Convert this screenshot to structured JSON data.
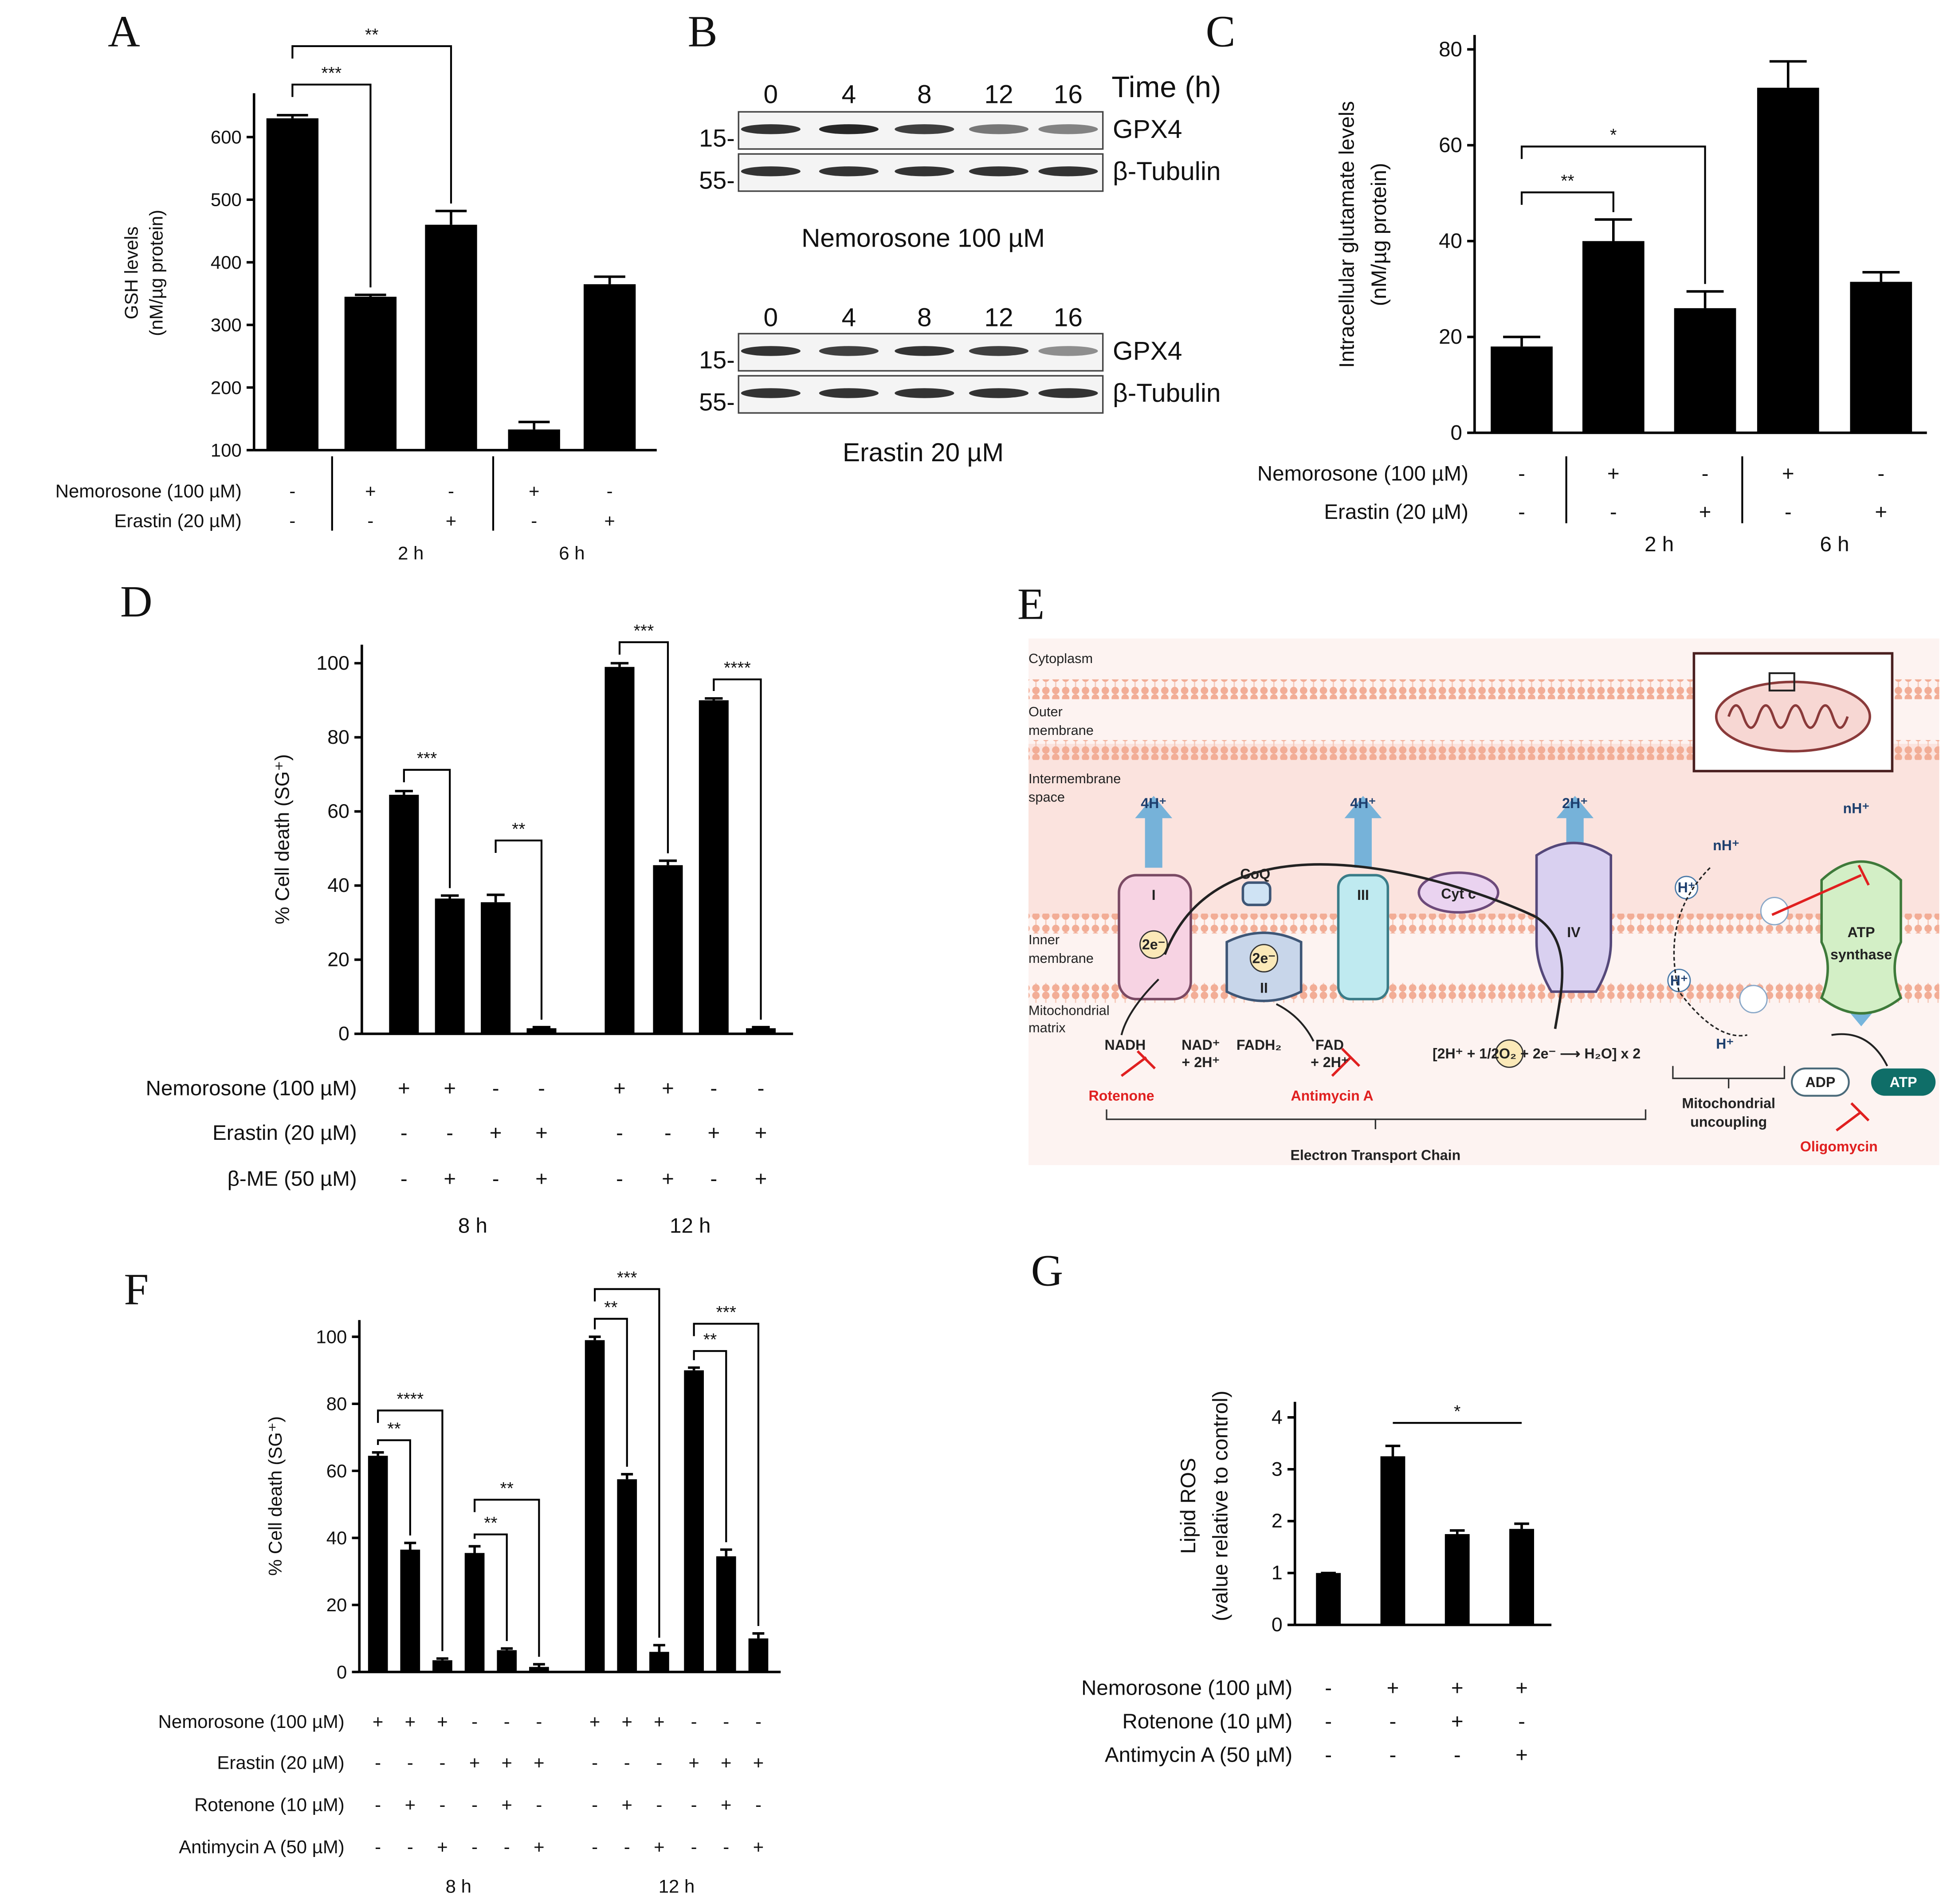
{
  "chart_data": [
    {
      "type": "bar",
      "label": "A",
      "ylabel": [
        "GSH levels",
        "(nM/µg protein)"
      ],
      "values": [
        630,
        345,
        460,
        133,
        365
      ],
      "errors": [
        5,
        3,
        22,
        12,
        12
      ],
      "color": "#000000",
      "ylim": [
        100,
        670
      ],
      "yticks": [
        100,
        200,
        300,
        400,
        500,
        600
      ],
      "rows": [
        {
          "label": "Nemorosone (100 µM)",
          "values": [
            "-",
            "+",
            "-",
            "+",
            "-"
          ]
        },
        {
          "label": "Erastin (20 µM)",
          "values": [
            "-",
            "-",
            "+",
            "-",
            "+"
          ]
        }
      ],
      "groups": [
        {
          "label": "2 h",
          "from": 1,
          "to": 2
        },
        {
          "label": "6 h",
          "from": 3,
          "to": 4
        }
      ],
      "significance": [
        {
          "from": 0,
          "to": 1,
          "label": "***"
        },
        {
          "from": 0,
          "to": 2,
          "label": "**"
        }
      ]
    },
    {
      "type": "bar",
      "label": "C",
      "ylabel": [
        "Intracellular glutamate levels",
        "(nM/µg protein)"
      ],
      "values": [
        18,
        40,
        26,
        72,
        31.5
      ],
      "errors": [
        2,
        4.5,
        3.5,
        5.5,
        2
      ],
      "color": "#000000",
      "ylim": [
        0,
        83
      ],
      "yticks": [
        0,
        20,
        40,
        60,
        80
      ],
      "rows": [
        {
          "label": "Nemorosone (100 µM)",
          "values": [
            "-",
            "+",
            "-",
            "+",
            "-"
          ]
        },
        {
          "label": "Erastin (20 µM)",
          "values": [
            "-",
            "-",
            "+",
            "-",
            "+"
          ]
        }
      ],
      "groups": [
        {
          "label": "2 h",
          "from": 1,
          "to": 2
        },
        {
          "label": "6 h",
          "from": 3,
          "to": 4
        }
      ],
      "significance": [
        {
          "from": 0,
          "to": 1,
          "label": "**"
        },
        {
          "from": 0,
          "to": 2,
          "label": "*"
        }
      ]
    },
    {
      "type": "bar",
      "label": "D",
      "ylabel": [
        "% Cell death (SG⁺)"
      ],
      "values": [
        64.5,
        36.5,
        35.5,
        1.5,
        99,
        45.5,
        90,
        1.5
      ],
      "errors": [
        1,
        0.8,
        2,
        0.3,
        1,
        1.2,
        0.5,
        0.3
      ],
      "color": "#000000",
      "ylim": [
        0,
        105
      ],
      "yticks": [
        0,
        20,
        40,
        60,
        80,
        100
      ],
      "rows": [
        {
          "label": "Nemorosone (100 µM)",
          "values": [
            "+",
            "+",
            "-",
            "-",
            "+",
            "+",
            "-",
            "-"
          ]
        },
        {
          "label": "Erastin (20 µM)",
          "values": [
            "-",
            "-",
            "+",
            "+",
            "-",
            "-",
            "+",
            "+"
          ]
        },
        {
          "label": "β-ME (50 µM)",
          "values": [
            "-",
            "+",
            "-",
            "+",
            "-",
            "+",
            "-",
            "+"
          ]
        }
      ],
      "groups": [
        {
          "label": "8 h",
          "from": 0,
          "to": 3
        },
        {
          "label": "12 h",
          "from": 4,
          "to": 7
        }
      ],
      "significance": [
        {
          "from": 0,
          "to": 1,
          "label": "***"
        },
        {
          "from": 2,
          "to": 3,
          "label": "**"
        },
        {
          "from": 4,
          "to": 5,
          "label": "***"
        },
        {
          "from": 6,
          "to": 7,
          "label": "****"
        }
      ]
    },
    {
      "type": "bar",
      "label": "F",
      "ylabel": [
        "% Cell death (SG⁺)"
      ],
      "values": [
        64.5,
        36.5,
        3.5,
        35.5,
        6.5,
        1.5,
        99,
        57.5,
        6,
        90,
        34.5,
        10
      ],
      "errors": [
        1,
        2,
        0.5,
        2,
        0.5,
        0.8,
        1,
        1.5,
        2,
        0.8,
        2,
        1.5
      ],
      "color": "#000000",
      "ylim": [
        0,
        105
      ],
      "yticks": [
        0,
        20,
        40,
        60,
        80,
        100
      ],
      "rows": [
        {
          "label": "Nemorosone (100 µM)",
          "values": [
            "+",
            "+",
            "+",
            "-",
            "-",
            "-",
            "+",
            "+",
            "+",
            "-",
            "-",
            "-"
          ]
        },
        {
          "label": "Erastin (20 µM)",
          "values": [
            "-",
            "-",
            "-",
            "+",
            "+",
            "+",
            "-",
            "-",
            "-",
            "+",
            "+",
            "+"
          ]
        },
        {
          "label": "Rotenone (10 µM)",
          "values": [
            "-",
            "+",
            "-",
            "-",
            "+",
            "-",
            "-",
            "+",
            "-",
            "-",
            "+",
            "-"
          ]
        },
        {
          "label": "Antimycin A (50 µM)",
          "values": [
            "-",
            "-",
            "+",
            "-",
            "-",
            "+",
            "-",
            "-",
            "+",
            "-",
            "-",
            "+"
          ]
        }
      ],
      "groups": [
        {
          "label": "8 h",
          "from": 0,
          "to": 5
        },
        {
          "label": "12 h",
          "from": 6,
          "to": 11
        }
      ],
      "significance": [
        {
          "from": 0,
          "to": 1,
          "label": "**"
        },
        {
          "from": 0,
          "to": 2,
          "label": "****"
        },
        {
          "from": 3,
          "to": 4,
          "label": "**"
        },
        {
          "from": 3,
          "to": 5,
          "label": "**"
        },
        {
          "from": 6,
          "to": 7,
          "label": "**"
        },
        {
          "from": 6,
          "to": 8,
          "label": "***"
        },
        {
          "from": 9,
          "to": 10,
          "label": "**"
        },
        {
          "from": 9,
          "to": 11,
          "label": "***"
        }
      ]
    },
    {
      "type": "bar",
      "label": "G",
      "ylabel": [
        "Lipid ROS",
        "(value relative to control)"
      ],
      "values": [
        1,
        3.25,
        1.75,
        1.85
      ],
      "errors": [
        0,
        0.2,
        0.07,
        0.1
      ],
      "color": "#000000",
      "ylim": [
        0,
        4.3
      ],
      "yticks": [
        0,
        1,
        2,
        3,
        4
      ],
      "rows": [
        {
          "label": "Nemorosone (100 µM)",
          "values": [
            "-",
            "+",
            "+",
            "+"
          ]
        },
        {
          "label": "Rotenone (10 µM)",
          "values": [
            "-",
            "-",
            "+",
            "-"
          ]
        },
        {
          "label": "Antimycin A (50 µM)",
          "values": [
            "-",
            "-",
            "-",
            "+"
          ]
        }
      ],
      "groups": [],
      "significance": [
        {
          "from": 1,
          "to": 3,
          "label": "*"
        }
      ]
    }
  ],
  "blot": {
    "label": "B",
    "time_label": "Time (h)",
    "panels": [
      {
        "times": [
          "0",
          "4",
          "8",
          "12",
          "16"
        ],
        "markers": [
          "15-",
          "55-"
        ],
        "proteins": [
          "GPX4",
          "β-Tubulin"
        ],
        "caption": "Nemorosone  100 µM"
      },
      {
        "times": [
          "0",
          "4",
          "8",
          "12",
          "16"
        ],
        "markers": [
          "15-",
          "55-"
        ],
        "proteins": [
          "GPX4",
          "β-Tubulin"
        ],
        "caption": "Erastin 20 µM"
      }
    ]
  },
  "diagram": {
    "label": "E",
    "labels": [
      "Cytoplasm",
      "Outer",
      "membrane",
      "Intermembrane",
      "space",
      "Inner",
      "membrane",
      "Mitochondrial",
      "matrix",
      "4H⁺",
      "4H⁺",
      "2H⁺",
      "nH⁺",
      "nH⁺",
      "I",
      "CoQ",
      "Cyt c",
      "III",
      "II",
      "IV",
      "ATP",
      "synthase",
      "2e⁻",
      "2e⁻",
      "H⁺",
      "H⁺",
      "H⁺",
      "NADH",
      "NAD⁺",
      "+ 2H⁺",
      "FADH₂",
      "FAD",
      "+ 2H⁺",
      "Rotenone",
      "Antimycin A",
      "Oligomycin",
      "[2H⁺ + 1/2O₂ + 2e⁻ ⟶ H₂O] x 2",
      "ADP",
      "ATP",
      "Mitochondrial",
      "uncoupling",
      "Electron Transport Chain"
    ]
  }
}
